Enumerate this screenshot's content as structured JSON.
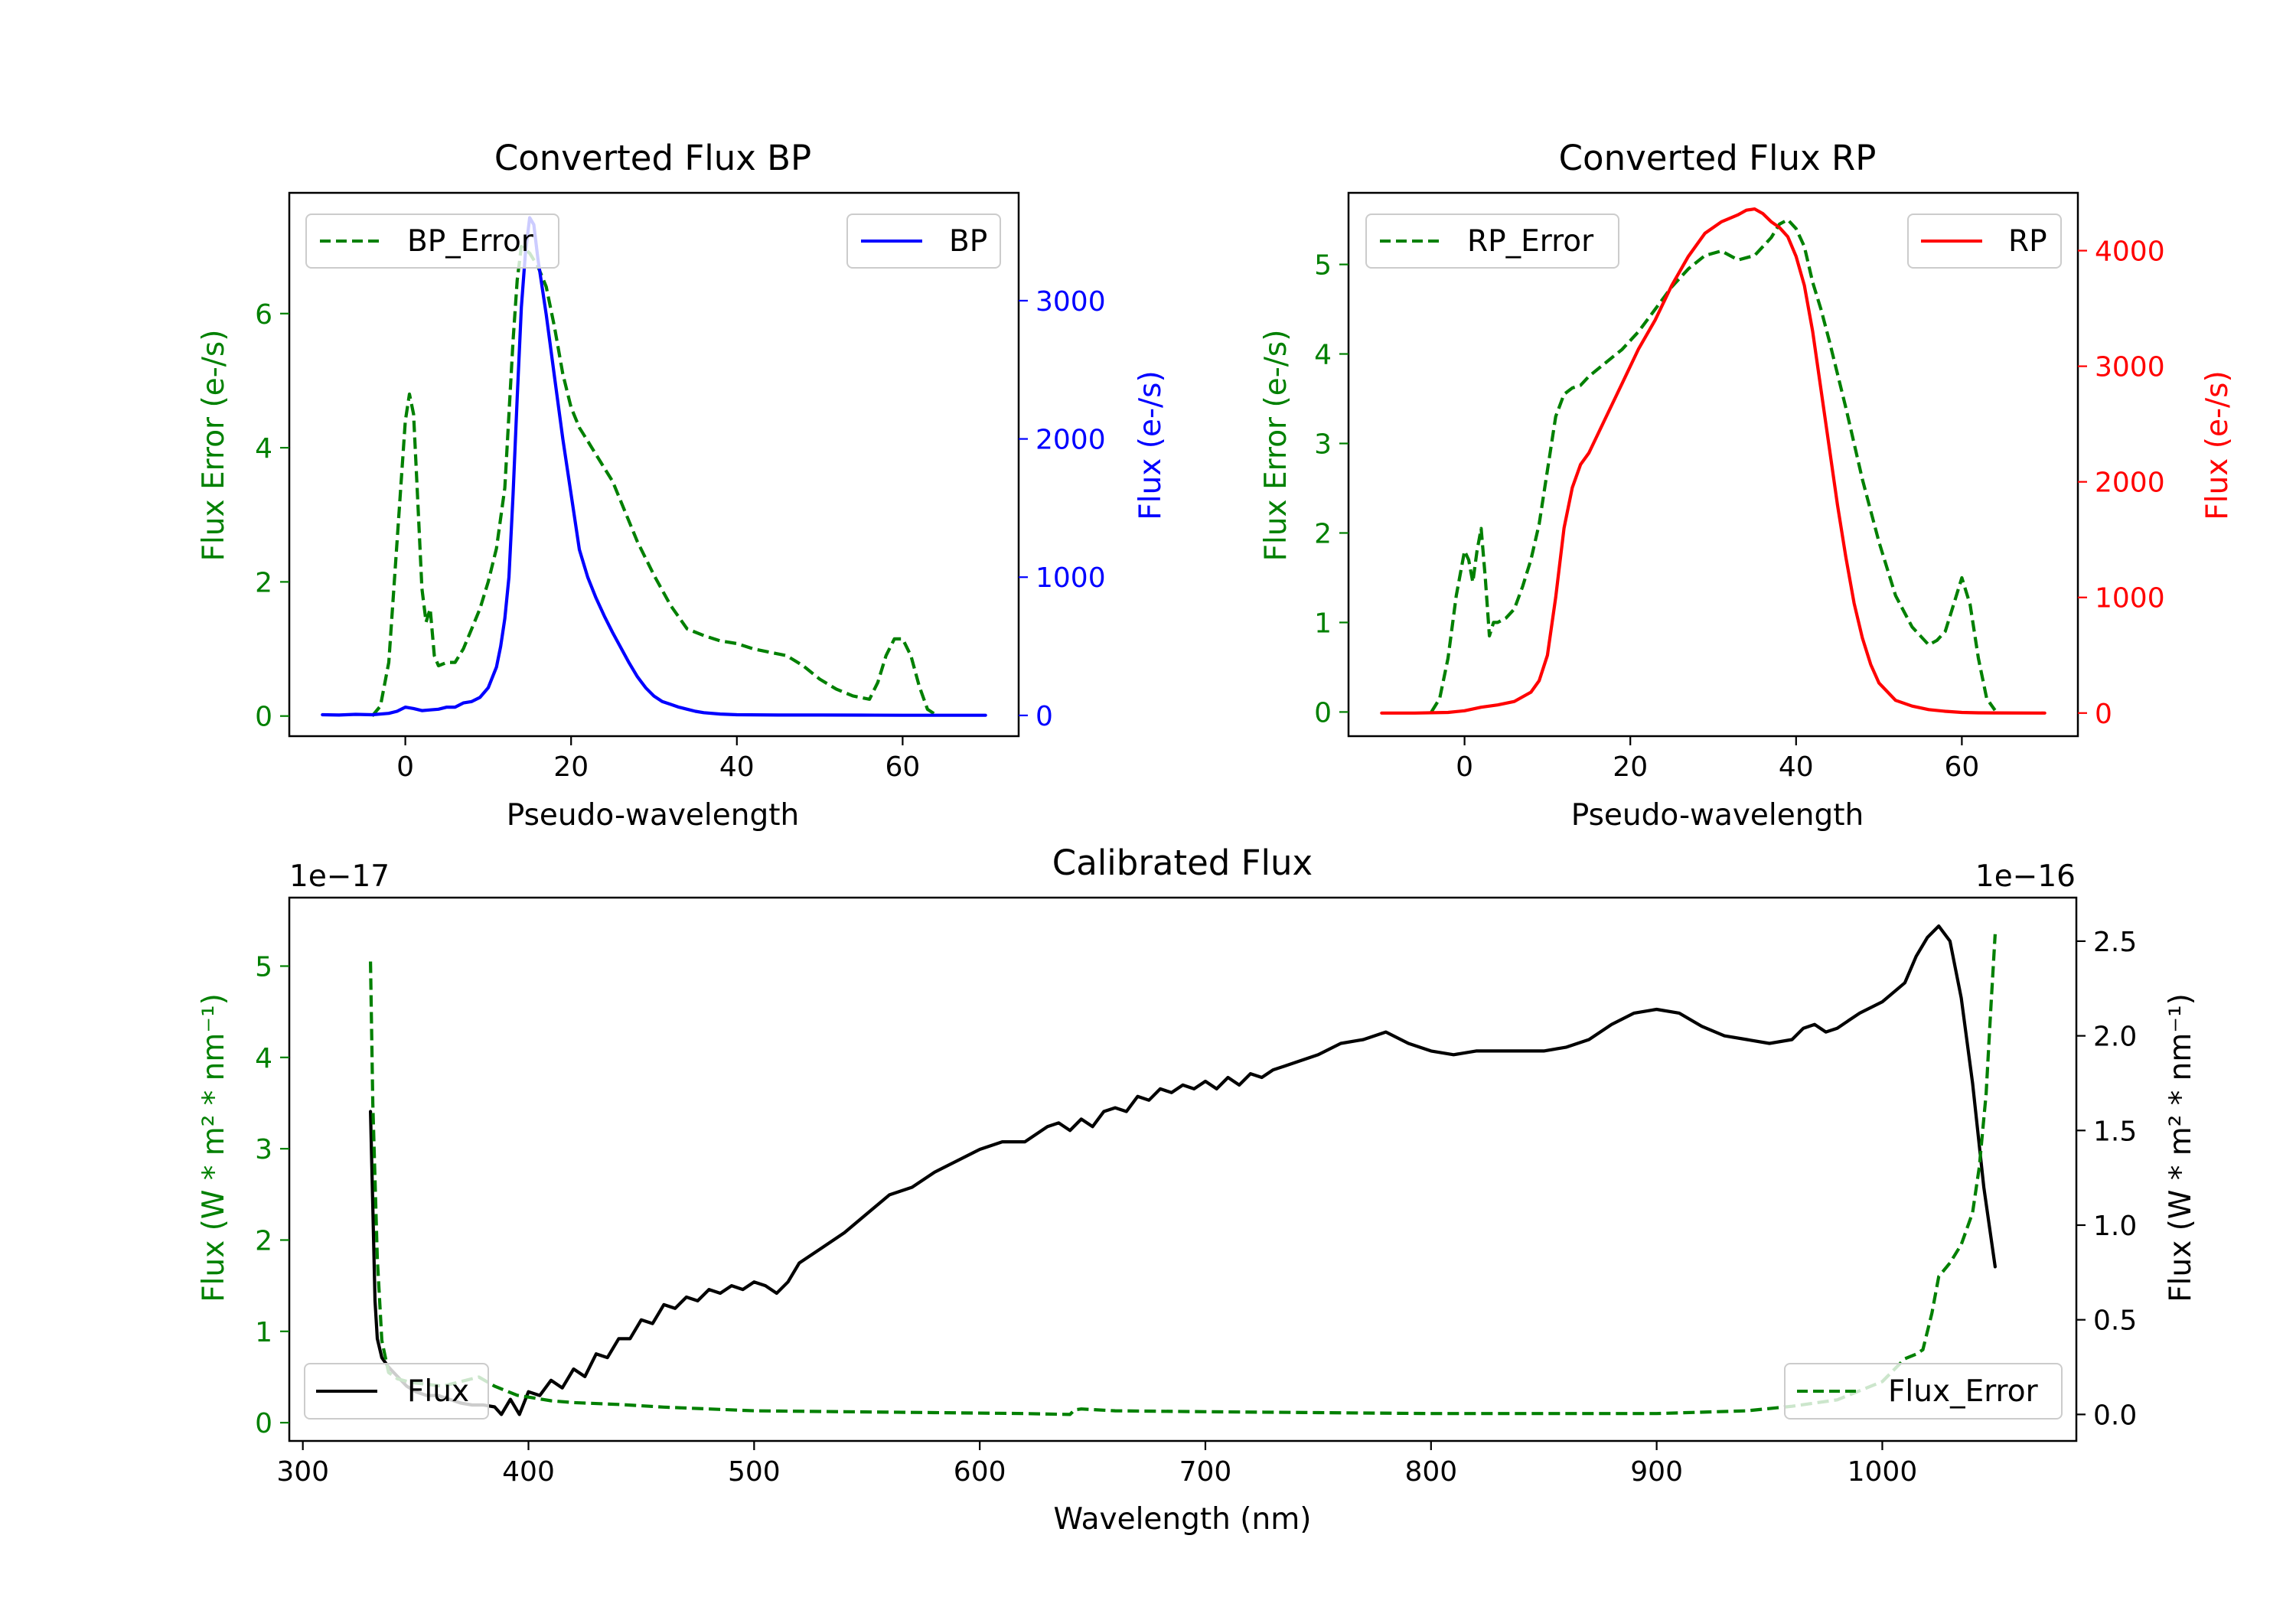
{
  "chart_data": [
    {
      "id": "bp",
      "type": "line",
      "title": "Converted Flux BP",
      "xlabel": "Pseudo-wavelength",
      "ylabel_left": "Flux Error (e-/s)",
      "ylabel_right": "Flux (e-/s)",
      "xlim": [
        -14,
        74
      ],
      "ylim_left": [
        -0.3,
        7.8
      ],
      "ylim_right": [
        -150,
        3780
      ],
      "xticks": [
        0,
        20,
        40,
        60
      ],
      "yticks_left": [
        0,
        2,
        4,
        6
      ],
      "yticks_right": [
        0,
        1000,
        2000,
        3000
      ],
      "colors": {
        "error": "#008000",
        "flux": "#0000ff",
        "right_axis": "#0000ff",
        "left_axis": "#008000"
      },
      "legend": {
        "error": "BP_Error",
        "flux": "BP",
        "error_position": "upper-left",
        "flux_position": "upper-right"
      },
      "series": [
        {
          "name": "BP_Error",
          "axis": "left",
          "style": "dashed",
          "color": "#008000",
          "x": [
            -4,
            -3,
            -2,
            -1,
            0,
            0.5,
            1,
            1.5,
            2,
            2.5,
            3,
            3.5,
            4,
            5,
            6,
            7,
            8,
            9,
            10,
            11,
            12,
            12.5,
            13,
            13.5,
            14,
            15,
            16,
            17,
            18,
            19,
            20,
            21,
            22,
            23,
            24,
            25,
            26,
            27,
            28,
            29,
            30,
            32,
            34,
            36,
            38,
            40,
            42,
            44,
            46,
            48,
            50,
            52,
            54,
            56,
            57,
            58,
            59,
            60,
            61,
            62,
            63,
            64
          ],
          "y": [
            0,
            0.15,
            0.8,
            2.6,
            4.4,
            4.8,
            4.5,
            3.2,
            1.9,
            1.4,
            1.6,
            0.9,
            0.75,
            0.8,
            0.8,
            1.0,
            1.3,
            1.6,
            2.0,
            2.5,
            3.4,
            4.5,
            5.6,
            6.5,
            7.0,
            6.9,
            6.7,
            6.4,
            5.8,
            5.1,
            4.6,
            4.3,
            4.1,
            3.9,
            3.7,
            3.5,
            3.2,
            2.9,
            2.6,
            2.35,
            2.1,
            1.65,
            1.3,
            1.2,
            1.12,
            1.08,
            1.0,
            0.95,
            0.9,
            0.75,
            0.55,
            0.4,
            0.3,
            0.25,
            0.5,
            0.9,
            1.15,
            1.15,
            0.9,
            0.45,
            0.1,
            0.02
          ]
        },
        {
          "name": "BP",
          "axis": "right",
          "style": "solid",
          "color": "#0000ff",
          "x": [
            -10,
            -8,
            -6,
            -4,
            -2,
            -1,
            0,
            1,
            2,
            3,
            4,
            5,
            6,
            7,
            8,
            9,
            10,
            11,
            11.5,
            12,
            12.5,
            13,
            13.5,
            14,
            14.5,
            15,
            15.5,
            16,
            16.5,
            17,
            18,
            19,
            20,
            21,
            22,
            23,
            24,
            25,
            26,
            27,
            28,
            29,
            30,
            31,
            32,
            33,
            34,
            35,
            36,
            38,
            40,
            45,
            50,
            55,
            60,
            65,
            70
          ],
          "y": [
            5,
            3,
            8,
            5,
            15,
            30,
            60,
            50,
            35,
            40,
            45,
            60,
            60,
            90,
            100,
            130,
            200,
            350,
            500,
            700,
            1000,
            1600,
            2300,
            2950,
            3350,
            3600,
            3550,
            3300,
            3100,
            2900,
            2450,
            2000,
            1600,
            1200,
            1000,
            850,
            720,
            600,
            490,
            380,
            280,
            200,
            140,
            100,
            80,
            60,
            45,
            30,
            20,
            10,
            5,
            3,
            3,
            2,
            1,
            1,
            1
          ]
        }
      ]
    },
    {
      "id": "rp",
      "type": "line",
      "title": "Converted Flux RP",
      "xlabel": "Pseudo-wavelength",
      "ylabel_left": "Flux Error (e-/s)",
      "ylabel_right": "Flux (e-/s)",
      "xlim": [
        -14,
        74
      ],
      "ylim_left": [
        -0.27,
        5.8
      ],
      "ylim_right": [
        -200,
        4500
      ],
      "xticks": [
        0,
        20,
        40,
        60
      ],
      "yticks_left": [
        0,
        1,
        2,
        3,
        4,
        5
      ],
      "yticks_right": [
        0,
        1000,
        2000,
        3000,
        4000
      ],
      "colors": {
        "error": "#008000",
        "flux": "#ff0000",
        "right_axis": "#ff0000",
        "left_axis": "#008000"
      },
      "legend": {
        "error": "RP_Error",
        "flux": "RP",
        "error_position": "upper-left",
        "flux_position": "upper-right"
      },
      "series": [
        {
          "name": "RP_Error",
          "axis": "left",
          "style": "dashed",
          "color": "#008000",
          "x": [
            -4,
            -3,
            -2,
            -1,
            0,
            0.5,
            1,
            1.5,
            2,
            2.5,
            3,
            3.5,
            4,
            5,
            6,
            7,
            8,
            9,
            10,
            11,
            12,
            13,
            14,
            15,
            17,
            19,
            21,
            23,
            25,
            27,
            29,
            31,
            33,
            35,
            37,
            38,
            39,
            40,
            41,
            42,
            43,
            44,
            46,
            48,
            50,
            52,
            54,
            56,
            57,
            58,
            59,
            60,
            61,
            62,
            63,
            64
          ],
          "y": [
            0,
            0.15,
            0.6,
            1.3,
            1.8,
            1.7,
            1.45,
            1.8,
            2.05,
            1.5,
            0.85,
            1.0,
            1.0,
            1.05,
            1.15,
            1.4,
            1.7,
            2.1,
            2.7,
            3.3,
            3.55,
            3.62,
            3.65,
            3.75,
            3.9,
            4.05,
            4.25,
            4.5,
            4.75,
            4.95,
            5.1,
            5.15,
            5.05,
            5.1,
            5.3,
            5.45,
            5.5,
            5.4,
            5.2,
            4.8,
            4.5,
            4.15,
            3.4,
            2.6,
            1.9,
            1.3,
            0.95,
            0.75,
            0.8,
            0.9,
            1.2,
            1.5,
            1.2,
            0.6,
            0.15,
            0.02
          ]
        },
        {
          "name": "RP",
          "axis": "right",
          "style": "solid",
          "color": "#ff0000",
          "x": [
            -10,
            -6,
            -2,
            0,
            2,
            4,
            6,
            8,
            9,
            10,
            11,
            12,
            13,
            14,
            15,
            17,
            19,
            21,
            23,
            25,
            27,
            29,
            31,
            33,
            34,
            35,
            36,
            37,
            38,
            39,
            40,
            41,
            42,
            43,
            44,
            45,
            46,
            47,
            48,
            49,
            50,
            52,
            54,
            56,
            58,
            60,
            62,
            64,
            70
          ],
          "y": [
            0,
            0,
            5,
            20,
            50,
            70,
            100,
            180,
            280,
            500,
            1000,
            1600,
            1950,
            2150,
            2250,
            2550,
            2850,
            3150,
            3400,
            3700,
            3950,
            4150,
            4250,
            4310,
            4350,
            4360,
            4320,
            4250,
            4200,
            4120,
            3950,
            3700,
            3300,
            2800,
            2300,
            1800,
            1350,
            950,
            650,
            420,
            260,
            110,
            60,
            30,
            15,
            5,
            2,
            1,
            0
          ]
        }
      ]
    },
    {
      "id": "cal",
      "type": "line",
      "title": "Calibrated Flux",
      "xlabel": "Wavelength (nm)",
      "ylabel_left": "Flux (W * m² * nm⁻¹)",
      "ylabel_right": "Flux (W * m² * nm⁻¹)",
      "offset_left": "1e−17",
      "offset_right": "1e−16",
      "xlim": [
        294,
        1086
      ],
      "ylim_left": [
        -0.2,
        5.75
      ],
      "ylim_right": [
        -0.14,
        2.73
      ],
      "xticks": [
        300,
        400,
        500,
        600,
        700,
        800,
        900,
        1000
      ],
      "yticks_left": [
        0,
        1,
        2,
        3,
        4,
        5
      ],
      "yticks_right": [
        0.0,
        0.5,
        1.0,
        1.5,
        2.0,
        2.5
      ],
      "yticklabels_right": [
        "0.0",
        "0.5",
        "1.0",
        "1.5",
        "2.0",
        "2.5"
      ],
      "colors": {
        "error": "#008000",
        "flux": "#000000",
        "right_axis": "#000000",
        "left_axis": "#008000"
      },
      "legend": {
        "flux": "Flux",
        "error": "Flux_Error",
        "flux_position": "lower-left",
        "error_position": "lower-right"
      },
      "series": [
        {
          "name": "Flux",
          "axis": "right",
          "style": "solid",
          "color": "#000000",
          "x": [
            330,
            331,
            332,
            333,
            335,
            338,
            342,
            346,
            350,
            355,
            360,
            365,
            370,
            375,
            380,
            385,
            388,
            392,
            396,
            400,
            405,
            410,
            415,
            420,
            425,
            430,
            435,
            440,
            445,
            450,
            455,
            460,
            465,
            470,
            475,
            480,
            485,
            490,
            495,
            500,
            505,
            510,
            515,
            520,
            530,
            540,
            550,
            560,
            570,
            580,
            590,
            600,
            610,
            620,
            630,
            635,
            640,
            645,
            650,
            655,
            660,
            665,
            670,
            675,
            680,
            685,
            690,
            695,
            700,
            705,
            710,
            715,
            720,
            725,
            730,
            735,
            740,
            750,
            760,
            770,
            780,
            790,
            800,
            810,
            820,
            830,
            840,
            850,
            860,
            870,
            880,
            890,
            900,
            910,
            920,
            930,
            940,
            950,
            960,
            965,
            970,
            975,
            980,
            985,
            990,
            1000,
            1010,
            1015,
            1020,
            1025,
            1030,
            1035,
            1040,
            1045,
            1050
          ],
          "y": [
            1.6,
            1.1,
            0.6,
            0.4,
            0.3,
            0.25,
            0.2,
            0.15,
            0.12,
            0.1,
            0.1,
            0.08,
            0.06,
            0.05,
            0.05,
            0.04,
            0.0,
            0.08,
            0.0,
            0.12,
            0.1,
            0.18,
            0.14,
            0.24,
            0.2,
            0.32,
            0.3,
            0.4,
            0.4,
            0.5,
            0.48,
            0.58,
            0.56,
            0.62,
            0.6,
            0.66,
            0.64,
            0.68,
            0.66,
            0.7,
            0.68,
            0.64,
            0.7,
            0.8,
            0.88,
            0.96,
            1.06,
            1.16,
            1.2,
            1.28,
            1.34,
            1.4,
            1.44,
            1.44,
            1.52,
            1.54,
            1.5,
            1.56,
            1.52,
            1.6,
            1.62,
            1.6,
            1.68,
            1.66,
            1.72,
            1.7,
            1.74,
            1.72,
            1.76,
            1.72,
            1.78,
            1.74,
            1.8,
            1.78,
            1.82,
            1.84,
            1.86,
            1.9,
            1.96,
            1.98,
            2.02,
            1.96,
            1.92,
            1.9,
            1.92,
            1.92,
            1.92,
            1.92,
            1.94,
            1.98,
            2.06,
            2.12,
            2.14,
            2.12,
            2.05,
            2.0,
            1.98,
            1.96,
            1.98,
            2.04,
            2.06,
            2.02,
            2.04,
            2.08,
            2.12,
            2.18,
            2.28,
            2.42,
            2.52,
            2.58,
            2.5,
            2.2,
            1.75,
            1.2,
            0.78
          ]
        },
        {
          "name": "Flux_Error",
          "axis": "left",
          "style": "dashed",
          "color": "#008000",
          "x": [
            330,
            331,
            333,
            335,
            338,
            342,
            348,
            355,
            362,
            370,
            378,
            385,
            390,
            395,
            400,
            410,
            420,
            440,
            460,
            480,
            500,
            540,
            580,
            620,
            640,
            642,
            645,
            660,
            700,
            750,
            800,
            850,
            900,
            940,
            960,
            980,
            1000,
            1010,
            1015,
            1018,
            1022,
            1025,
            1030,
            1035,
            1040,
            1043,
            1046,
            1048,
            1050
          ],
          "y": [
            5.05,
            3.5,
            1.8,
            0.9,
            0.55,
            0.48,
            0.44,
            0.42,
            0.4,
            0.45,
            0.5,
            0.4,
            0.35,
            0.3,
            0.28,
            0.24,
            0.22,
            0.2,
            0.17,
            0.15,
            0.13,
            0.12,
            0.11,
            0.1,
            0.09,
            0.14,
            0.15,
            0.13,
            0.12,
            0.11,
            0.1,
            0.1,
            0.1,
            0.13,
            0.18,
            0.25,
            0.45,
            0.7,
            0.75,
            0.8,
            1.2,
            1.6,
            1.75,
            1.95,
            2.3,
            2.8,
            3.6,
            4.5,
            5.35
          ]
        }
      ]
    }
  ]
}
